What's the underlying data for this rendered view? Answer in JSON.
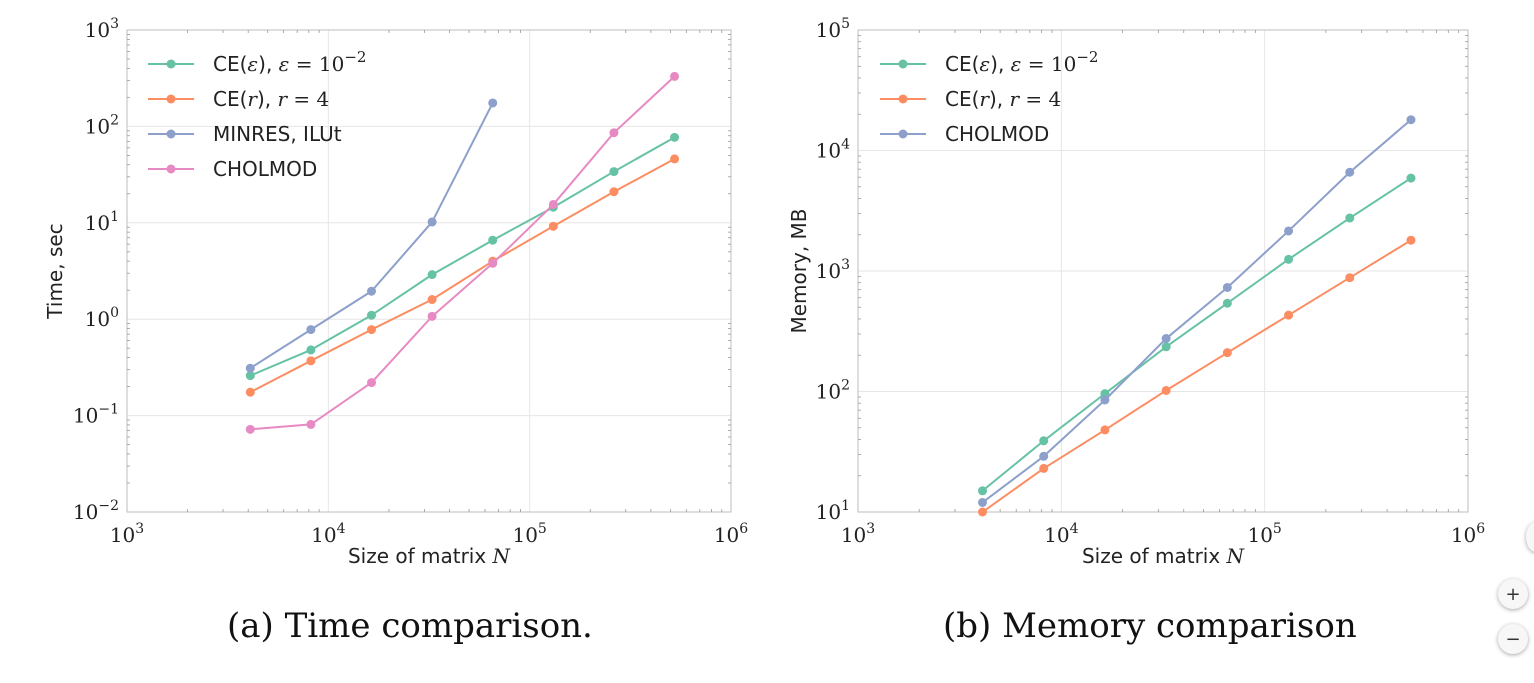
{
  "chart_data": [
    {
      "type": "line",
      "caption": "(a) Time comparison.",
      "xlabel": "Size of matrix N",
      "ylabel": "Time, sec",
      "xscale": "log",
      "yscale": "log",
      "xlim": [
        1000,
        1000000
      ],
      "ylim": [
        0.01,
        1000
      ],
      "grid": true,
      "legend_position": "top-left",
      "x_ticks": [
        {
          "base": "10",
          "exp": "3"
        },
        {
          "base": "10",
          "exp": "4"
        },
        {
          "base": "10",
          "exp": "5"
        },
        {
          "base": "10",
          "exp": "6"
        }
      ],
      "y_ticks": [
        {
          "base": "10",
          "exp": "−2"
        },
        {
          "base": "10",
          "exp": "−1"
        },
        {
          "base": "10",
          "exp": "0"
        },
        {
          "base": "10",
          "exp": "1"
        },
        {
          "base": "10",
          "exp": "2"
        },
        {
          "base": "10",
          "exp": "3"
        }
      ],
      "series": [
        {
          "name": "CE(ε), ε = 10⁻²",
          "color": "#66c2a5",
          "x": [
            4096,
            8192,
            16384,
            32768,
            65536,
            131072,
            262144,
            524288
          ],
          "y": [
            0.26,
            0.48,
            1.1,
            2.9,
            6.6,
            14.5,
            34,
            77
          ]
        },
        {
          "name": "CE(r), r = 4",
          "color": "#fc8d62",
          "x": [
            4096,
            8192,
            16384,
            32768,
            65536,
            131072,
            262144,
            524288
          ],
          "y": [
            0.175,
            0.37,
            0.78,
            1.6,
            4.0,
            9.2,
            21,
            46
          ]
        },
        {
          "name": "MINRES, ILUt",
          "color": "#8da0cb",
          "x": [
            4096,
            8192,
            16384,
            32768,
            65536
          ],
          "y": [
            0.31,
            0.78,
            1.95,
            10.2,
            175
          ]
        },
        {
          "name": "CHOLMOD",
          "color": "#e78ac3",
          "x": [
            4096,
            8192,
            16384,
            32768,
            65536,
            131072,
            262144,
            524288
          ],
          "y": [
            0.072,
            0.081,
            0.22,
            1.07,
            3.8,
            15.5,
            86,
            330
          ]
        }
      ]
    },
    {
      "type": "line",
      "caption": "(b) Memory comparison",
      "xlabel": "Size of matrix N",
      "ylabel": "Memory, MB",
      "xscale": "log",
      "yscale": "log",
      "xlim": [
        1000,
        1000000
      ],
      "ylim": [
        10,
        100000
      ],
      "grid": true,
      "legend_position": "top-left",
      "x_ticks": [
        {
          "base": "10",
          "exp": "3"
        },
        {
          "base": "10",
          "exp": "4"
        },
        {
          "base": "10",
          "exp": "5"
        },
        {
          "base": "10",
          "exp": "6"
        }
      ],
      "y_ticks": [
        {
          "base": "10",
          "exp": "1"
        },
        {
          "base": "10",
          "exp": "2"
        },
        {
          "base": "10",
          "exp": "3"
        },
        {
          "base": "10",
          "exp": "4"
        },
        {
          "base": "10",
          "exp": "5"
        }
      ],
      "series": [
        {
          "name": "CE(ε), ε = 10⁻²",
          "color": "#66c2a5",
          "x": [
            4096,
            8192,
            16384,
            32768,
            65536,
            131072,
            262144,
            524288
          ],
          "y": [
            15,
            39,
            96,
            235,
            540,
            1250,
            2750,
            5900
          ]
        },
        {
          "name": "CE(r), r = 4",
          "color": "#fc8d62",
          "x": [
            4096,
            8192,
            16384,
            32768,
            65536,
            131072,
            262144,
            524288
          ],
          "y": [
            10,
            23,
            48,
            102,
            210,
            430,
            880,
            1800
          ]
        },
        {
          "name": "CHOLMOD",
          "color": "#8da0cb",
          "x": [
            4096,
            8192,
            16384,
            32768,
            65536,
            131072,
            262144,
            524288
          ],
          "y": [
            12,
            29,
            85,
            275,
            730,
            2150,
            6600,
            18000
          ]
        }
      ]
    }
  ],
  "zoom_controls": {
    "zoom_in": "+",
    "zoom_out": "−"
  }
}
